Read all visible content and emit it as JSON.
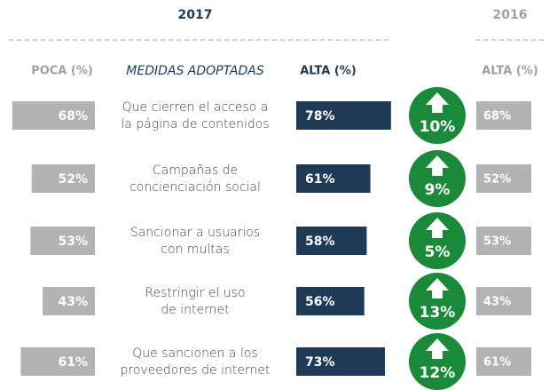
{
  "chart_data": {
    "type": "bar",
    "year_current": "2017",
    "year_previous": "2016",
    "header_low": "POCA (%)",
    "header_measures": "MEDIDAS ADOPTADAS",
    "header_high": "ALTA (%)",
    "header_high_previous": "ALTA (%)",
    "categories": [
      [
        "Que cierren el acceso a",
        "la página de contenidos"
      ],
      [
        "Campañas de",
        "concienciación social"
      ],
      [
        "Sancionar a usuarios",
        "con multas"
      ],
      [
        "Restringir el uso",
        "de internet"
      ],
      [
        "Que sancionen a los",
        "proveedores de internet"
      ]
    ],
    "series": [
      {
        "name": "POCA (%)",
        "color": "#b3b3b3",
        "values": [
          68,
          52,
          53,
          43,
          61
        ],
        "value_labels": [
          "68%",
          "52%",
          "53%",
          "43%",
          "61%"
        ]
      },
      {
        "name": "ALTA (%)",
        "color": "#1e3a56",
        "values": [
          78,
          61,
          58,
          56,
          73
        ],
        "value_labels": [
          "78%",
          "61%",
          "58%",
          "56%",
          "73%"
        ]
      },
      {
        "name": "change",
        "color": "#1a8a3a",
        "values": [
          10,
          9,
          5,
          13,
          12
        ],
        "value_labels": [
          "10%",
          "9%",
          "5%",
          "13%",
          "12%"
        ]
      },
      {
        "name": "ALTA (%) 2016",
        "color": "#b3b3b3",
        "values": [
          68,
          52,
          53,
          43,
          61
        ],
        "value_labels": [
          "68%",
          "52%",
          "53%",
          "43%",
          "61%"
        ]
      }
    ]
  }
}
